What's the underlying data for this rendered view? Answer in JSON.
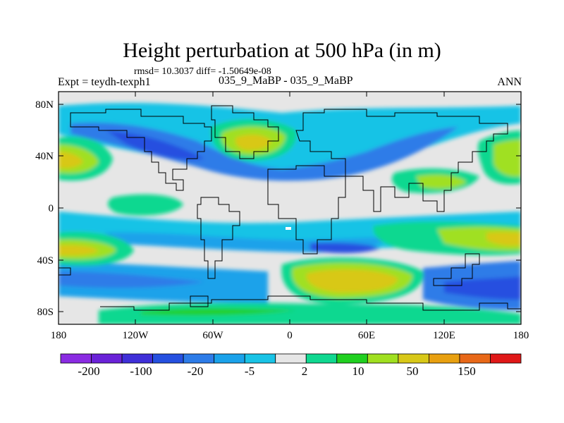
{
  "title": "Height perturbation at 500 hPa (in m)",
  "stats_line": "rmsd= 10.3037 diff= -1.50649e-08",
  "left_label": "Expt = teydh-texph1",
  "center_label": "035_9_MaBP - 035_9_MaBP",
  "right_label": "ANN",
  "lat_ticks": [
    "80N",
    "40N",
    "0",
    "40S",
    "80S"
  ],
  "lon_ticks": [
    "180",
    "120W",
    "60W",
    "0",
    "60E",
    "120E",
    "180"
  ],
  "colorbar": {
    "labels": [
      "-200",
      "-100",
      "-20",
      "-5",
      "2",
      "10",
      "50",
      "150"
    ],
    "colors": [
      "#8a2be2",
      "#6a22d8",
      "#3f2fd8",
      "#2550e0",
      "#2d7ce8",
      "#1aa2ea",
      "#19c3e6",
      "#e6e6e6",
      "#10d890",
      "#20d020",
      "#a0e020",
      "#d8c818",
      "#e8a010",
      "#e86818",
      "#e01818"
    ]
  },
  "palette": {
    "background": "#e6e6e6",
    "land_outline": "#000000"
  }
}
